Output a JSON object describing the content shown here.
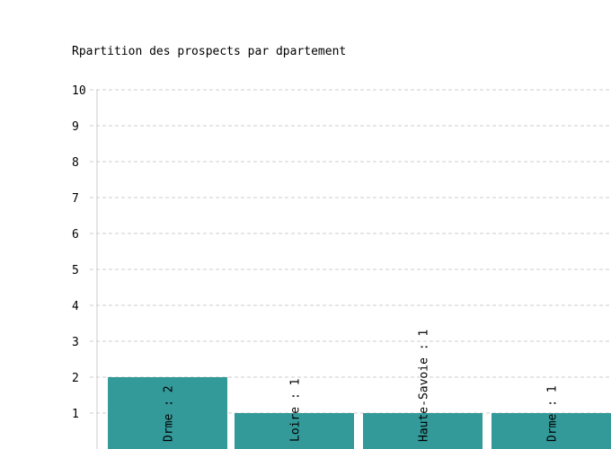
{
  "chart_data": {
    "type": "bar",
    "title": "Rpartition des prospects par dpartement",
    "categories": [
      "Drme",
      "Loire",
      "Haute-Savoie",
      "Drme"
    ],
    "values": [
      2,
      1,
      1,
      1
    ],
    "data_labels": [
      "Drme : 2",
      "Loire : 1",
      "Haute-Savoie : 1",
      "Drme : 1"
    ],
    "ylim": [
      0,
      10
    ],
    "yticks": [
      1,
      2,
      3,
      4,
      5,
      6,
      7,
      8,
      9,
      10
    ],
    "grid": true,
    "bar_color": "#339999",
    "grid_color": "#cccccc",
    "axis_color": "#cccccc"
  }
}
